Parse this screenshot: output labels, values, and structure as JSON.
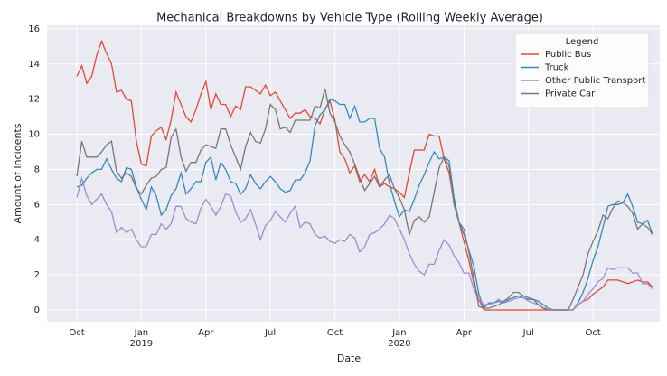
{
  "chart_data": {
    "type": "line",
    "title": "Mechanical Breakdowns by Vehicle Type (Rolling Weekly Average)",
    "x_label": "Date",
    "y_label": "Amount of Incidents",
    "legend_title": "Legend",
    "legend": "upper right",
    "grid": true,
    "ylim": [
      -0.67,
      16.2
    ],
    "yticks": [
      0,
      2,
      4,
      6,
      8,
      10,
      12,
      14,
      16
    ],
    "categories": [
      "Oct",
      null,
      null,
      null,
      null,
      null,
      null,
      null,
      null,
      null,
      null,
      null,
      null,
      "Jan\n2019",
      null,
      null,
      null,
      null,
      null,
      null,
      null,
      null,
      null,
      null,
      null,
      null,
      "Apr",
      null,
      null,
      null,
      null,
      null,
      null,
      null,
      null,
      null,
      null,
      null,
      null,
      "Jul",
      null,
      null,
      null,
      null,
      null,
      null,
      null,
      null,
      null,
      null,
      null,
      null,
      "Oct",
      null,
      null,
      null,
      null,
      null,
      null,
      null,
      null,
      null,
      null,
      null,
      null,
      "Jan\n2020",
      null,
      null,
      null,
      null,
      null,
      null,
      null,
      null,
      null,
      null,
      null,
      null,
      "Apr",
      null,
      null,
      null,
      null,
      null,
      null,
      null,
      null,
      null,
      null,
      null,
      null,
      "Jul",
      null,
      null,
      null,
      null,
      null,
      null,
      null,
      null,
      null,
      null,
      null,
      null,
      "Oct",
      null,
      null,
      null,
      null,
      null,
      null,
      null,
      null,
      null,
      null,
      null,
      null
    ],
    "series": [
      {
        "name": "Public Bus",
        "color": "#e24a33",
        "values": [
          13.3,
          13.9,
          12.9,
          13.3,
          14.5,
          15.3,
          14.6,
          14.0,
          12.4,
          12.5,
          12.0,
          11.9,
          9.6,
          8.3,
          8.2,
          9.9,
          10.2,
          10.4,
          9.7,
          10.8,
          12.4,
          11.7,
          11.0,
          10.7,
          11.4,
          12.3,
          13.0,
          11.4,
          12.3,
          11.7,
          11.7,
          11.0,
          11.6,
          11.4,
          12.7,
          12.7,
          12.5,
          12.3,
          12.8,
          12.2,
          12.4,
          11.9,
          11.4,
          10.9,
          11.2,
          11.2,
          11.4,
          11.0,
          10.9,
          10.6,
          11.4,
          11.9,
          10.8,
          9.0,
          8.6,
          7.8,
          8.2,
          7.3,
          7.7,
          7.3,
          8.0,
          7.0,
          7.2,
          7.0,
          6.9,
          6.7,
          6.4,
          7.8,
          9.1,
          9.1,
          9.1,
          10.0,
          9.9,
          9.9,
          8.6,
          7.8,
          6.1,
          5.0,
          3.9,
          2.8,
          1.5,
          0.6,
          0,
          0,
          0,
          0,
          0,
          0,
          0,
          0,
          0,
          0,
          0,
          0,
          0,
          0,
          0,
          0,
          0,
          0,
          0,
          0.3,
          0.5,
          0.6,
          0.9,
          1.1,
          1.3,
          1.7,
          1.7,
          1.7,
          1.6,
          1.5,
          1.6,
          1.7,
          1.6,
          1.6,
          1.3
        ]
      },
      {
        "name": "Truck",
        "color": "#348abd",
        "values": [
          7.0,
          7.1,
          7.5,
          7.8,
          8.0,
          8.0,
          8.6,
          8.0,
          7.5,
          7.3,
          8.1,
          8.0,
          7.0,
          6.3,
          5.7,
          7.0,
          6.5,
          5.4,
          5.7,
          6.5,
          6.9,
          7.8,
          6.6,
          6.9,
          7.3,
          7.3,
          8.4,
          8.7,
          7.4,
          8.4,
          8.0,
          7.3,
          7.2,
          6.6,
          6.9,
          7.7,
          7.2,
          6.9,
          7.3,
          7.6,
          7.3,
          6.9,
          6.7,
          6.8,
          7.4,
          7.4,
          7.8,
          8.5,
          10.5,
          11.1,
          11.4,
          12.0,
          11.9,
          11.7,
          11.7,
          10.9,
          11.6,
          10.7,
          10.7,
          10.9,
          10.9,
          9.2,
          8.7,
          7.2,
          6.2,
          5.3,
          5.7,
          5.6,
          6.3,
          7.1,
          7.7,
          8.4,
          9.0,
          8.6,
          8.7,
          8.5,
          6.4,
          5.0,
          4.3,
          3.4,
          2.5,
          0.9,
          0.1,
          0.4,
          0.4,
          0.5,
          0.4,
          0.6,
          0.7,
          0.8,
          0.7,
          0.6,
          0.6,
          0.5,
          0.3,
          0.1,
          0,
          0,
          0,
          0,
          0,
          0.4,
          1.0,
          1.8,
          2.8,
          3.6,
          4.7,
          5.9,
          6.0,
          6.0,
          6.1,
          6.6,
          5.9,
          5.0,
          4.9,
          5.1,
          4.3
        ]
      },
      {
        "name": "Other Public Transport",
        "color": "#988ed5",
        "values": [
          6.4,
          7.5,
          6.5,
          6.0,
          6.3,
          6.6,
          6.0,
          5.6,
          4.4,
          4.7,
          4.4,
          4.6,
          4.0,
          3.6,
          3.6,
          4.3,
          4.3,
          4.9,
          4.6,
          4.9,
          5.9,
          5.9,
          5.2,
          5.0,
          4.9,
          5.8,
          6.3,
          5.9,
          5.4,
          5.9,
          6.6,
          6.5,
          5.6,
          5.0,
          5.2,
          5.7,
          4.9,
          4.0,
          4.8,
          5.1,
          5.6,
          5.3,
          5.0,
          5.5,
          5.9,
          4.7,
          5.0,
          4.9,
          4.3,
          4.1,
          4.2,
          3.9,
          3.8,
          4.0,
          3.9,
          4.3,
          4.1,
          3.3,
          3.6,
          4.3,
          4.4,
          4.6,
          4.9,
          5.4,
          5.2,
          4.6,
          4.0,
          3.2,
          2.6,
          2.2,
          2.0,
          2.6,
          2.6,
          3.4,
          4.0,
          3.7,
          3.1,
          2.7,
          2.1,
          2.1,
          1.2,
          0.6,
          0.3,
          0.3,
          0.4,
          0.6,
          0.4,
          0.5,
          0.6,
          0.7,
          0.7,
          0.5,
          0.4,
          0.3,
          0.1,
          0.1,
          0,
          0,
          0,
          0,
          0,
          0.3,
          0.5,
          0.9,
          1.2,
          1.6,
          1.8,
          2.4,
          2.3,
          2.4,
          2.4,
          2.4,
          2.1,
          2.1,
          1.5,
          1.5,
          1.2
        ]
      },
      {
        "name": "Private Car",
        "color": "#777777",
        "values": [
          7.6,
          9.6,
          8.7,
          8.7,
          8.7,
          9.0,
          9.4,
          9.6,
          7.9,
          7.5,
          7.8,
          7.6,
          6.9,
          6.6,
          7.1,
          7.5,
          7.6,
          8.0,
          8.1,
          9.8,
          10.3,
          8.7,
          7.9,
          8.4,
          8.4,
          9.1,
          9.4,
          9.3,
          9.2,
          10.3,
          10.3,
          9.4,
          8.7,
          8.0,
          9.3,
          10.1,
          9.6,
          9.5,
          10.3,
          11.7,
          11.4,
          10.3,
          10.4,
          10.1,
          10.8,
          10.8,
          10.8,
          10.8,
          11.6,
          11.5,
          12.6,
          11.2,
          10.7,
          9.9,
          9.4,
          9.0,
          8.3,
          7.5,
          6.8,
          7.2,
          7.6,
          7.0,
          7.4,
          7.7,
          6.9,
          6.4,
          5.7,
          4.3,
          5.1,
          5.3,
          5.0,
          5.3,
          6.7,
          8.1,
          8.7,
          8.2,
          6.0,
          5.0,
          4.6,
          3.3,
          1.8,
          0.2,
          0.1,
          0.1,
          0.2,
          0.3,
          0.5,
          0.7,
          1.0,
          1.0,
          0.8,
          0.7,
          0.6,
          0.3,
          0.1,
          0,
          0,
          0,
          0,
          0,
          0.6,
          1.3,
          2.0,
          3.2,
          3.9,
          4.5,
          5.4,
          5.2,
          5.8,
          6.2,
          6.1,
          5.9,
          5.5,
          4.6,
          4.9,
          4.7,
          4.3
        ]
      }
    ]
  }
}
